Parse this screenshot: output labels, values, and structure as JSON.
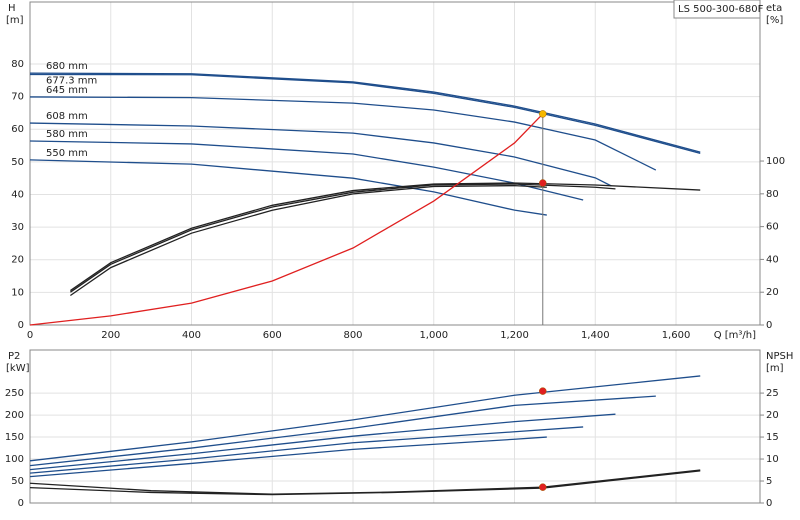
{
  "chart_data": [
    {
      "type": "line",
      "legend_text": "LS 500-300-680F",
      "x_label": "Q [m³/h]",
      "y_label": "H",
      "y_unit": "[m]",
      "y2_label": "eta",
      "y2_unit": "[%]",
      "xlim": [
        0,
        1808
      ],
      "ylim": [
        0,
        99
      ],
      "y2lim": [
        0,
        197
      ],
      "xticks": [
        0,
        200,
        400,
        600,
        800,
        {
          "value": 1000,
          "label": "1,000"
        },
        {
          "value": 1200,
          "label": "1,200"
        },
        {
          "value": 1400,
          "label": "1,400"
        },
        {
          "value": 1600,
          "label": "1,600"
        }
      ],
      "yticks": [
        0,
        10,
        20,
        30,
        40,
        50,
        60,
        70,
        80
      ],
      "y2ticks": [
        0,
        20,
        40,
        60,
        80,
        100
      ],
      "grid": true,
      "series": [
        {
          "name": "680 mm",
          "color": "#1f4e8c",
          "x": [
            0,
            400,
            800,
            1000,
            1200,
            1400,
            1660
          ],
          "values": [
            77.2,
            77,
            74.5,
            71.4,
            67.1,
            61.6,
            53
          ]
        },
        {
          "name": "677.3 mm",
          "color": "#1f4e8c",
          "x": [
            0,
            400,
            800,
            1000,
            1200,
            1400,
            1660
          ],
          "values": [
            76.8,
            76.7,
            74.2,
            71,
            66.7,
            61.2,
            52.6
          ]
        },
        {
          "name": "645 mm",
          "color": "#1f4e8c",
          "x": [
            0,
            400,
            800,
            1000,
            1200,
            1400,
            1550
          ],
          "values": [
            69.9,
            69.7,
            68,
            65.9,
            62.2,
            56.7,
            47.5
          ]
        },
        {
          "name": "608 mm",
          "color": "#1f4e8c",
          "x": [
            0,
            400,
            800,
            1000,
            1200,
            1400,
            1440
          ],
          "values": [
            61.9,
            61,
            58.8,
            55.8,
            51.5,
            45.1,
            42.6
          ]
        },
        {
          "name": "580 mm",
          "color": "#1f4e8c",
          "x": [
            0,
            400,
            800,
            1000,
            1200,
            1370
          ],
          "values": [
            56.4,
            55.5,
            52.4,
            48.4,
            43.5,
            38.3
          ]
        },
        {
          "name": "550 mm",
          "color": "#1f4e8c",
          "x": [
            0,
            400,
            800,
            1000,
            1200,
            1280
          ],
          "values": [
            50.6,
            49.3,
            45,
            40.8,
            35.2,
            33.7
          ]
        },
        {
          "color": "#222222",
          "axis": "y2",
          "x": [
            100,
            200,
            400,
            600,
            800,
            1000,
            1200,
            1400,
            1660
          ],
          "values": [
            21,
            38,
            59,
            73,
            82,
            86,
            86.6,
            85.4,
            82.3
          ]
        },
        {
          "color": "#222222",
          "axis": "y2",
          "x": [
            100,
            200,
            400,
            600,
            800,
            1000,
            1200,
            1400,
            1450
          ],
          "values": [
            20,
            37,
            58,
            72,
            81,
            85.5,
            86,
            84,
            83
          ]
        },
        {
          "color": "#222222",
          "axis": "y2",
          "x": [
            100,
            200,
            400,
            600,
            800,
            1000,
            1200,
            1280
          ],
          "values": [
            18,
            35,
            56,
            70,
            80,
            84.5,
            85,
            84
          ]
        },
        {
          "color": "#e02020",
          "x": [
            0,
            200,
            400,
            600,
            800,
            1000,
            1200,
            1270
          ],
          "values": [
            0,
            2.8,
            6.7,
            13.5,
            23.6,
            38,
            55.8,
            64.7
          ]
        }
      ],
      "points": [
        {
          "x": 1270,
          "y": 64.7,
          "color": "#f5b800"
        },
        {
          "x": 1270,
          "y": 86.6,
          "axis": "y2",
          "color": "#e02020"
        }
      ]
    },
    {
      "type": "line",
      "y_label": "P2",
      "y_unit": "[kW]",
      "y2_label": "NPSH",
      "y2_unit": "[m]",
      "xlim": [
        0,
        1808
      ],
      "ylim": [
        0,
        348
      ],
      "y2lim": [
        0,
        34.8
      ],
      "yticks": [
        0,
        50,
        100,
        150,
        200,
        250
      ],
      "y2ticks": [
        0,
        5,
        10,
        15,
        20,
        25
      ],
      "grid": true,
      "series": [
        {
          "color": "#1f4e8c",
          "x": [
            0,
            400,
            800,
            1200,
            1660
          ],
          "values": [
            96,
            139,
            189,
            245,
            289
          ]
        },
        {
          "color": "#1f4e8c",
          "x": [
            0,
            400,
            800,
            1200,
            1550
          ],
          "values": [
            85,
            125,
            170,
            222,
            243
          ]
        },
        {
          "color": "#1f4e8c",
          "x": [
            0,
            400,
            800,
            1200,
            1450
          ],
          "values": [
            76,
            112,
            152,
            185,
            202
          ]
        },
        {
          "color": "#1f4e8c",
          "x": [
            0,
            400,
            800,
            1200,
            1370
          ],
          "values": [
            68,
            100,
            137,
            162,
            173
          ]
        },
        {
          "color": "#1f4e8c",
          "x": [
            0,
            400,
            800,
            1200,
            1280
          ],
          "values": [
            60,
            90,
            122,
            145,
            150
          ]
        },
        {
          "color": "#222222",
          "axis": "y2",
          "x": [
            0,
            300,
            600,
            900,
            1270,
            1660
          ],
          "values": [
            4.5,
            2.8,
            2,
            2.5,
            3.6,
            7.5
          ]
        },
        {
          "color": "#222222",
          "axis": "y2",
          "x": [
            0,
            300,
            600,
            900,
            1270,
            1660
          ],
          "values": [
            3.5,
            2.4,
            1.9,
            2.4,
            3.4,
            7.3
          ]
        }
      ],
      "points": [
        {
          "x": 1270,
          "y": 254.5,
          "color": "#e02020"
        },
        {
          "x": 1270,
          "y": 3.6,
          "axis": "y2",
          "color": "#e02020"
        }
      ]
    }
  ]
}
